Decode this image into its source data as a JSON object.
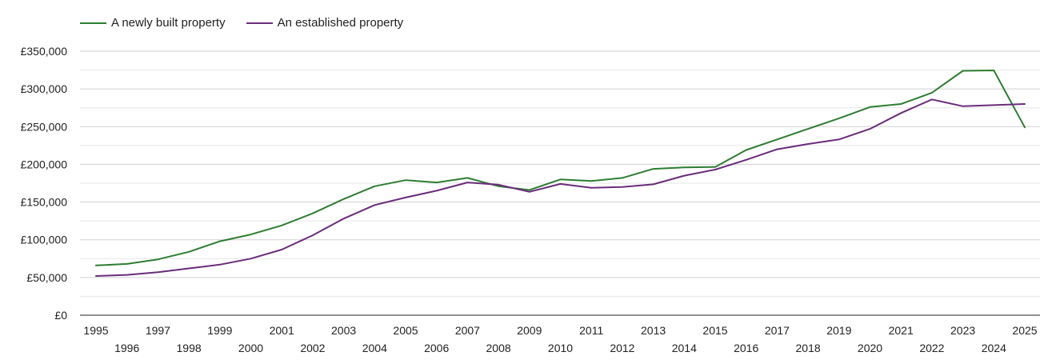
{
  "chart_data": {
    "type": "line",
    "title": "",
    "xlabel": "",
    "ylabel": "",
    "ylim": [
      0,
      350000
    ],
    "yticks": [
      0,
      50000,
      100000,
      150000,
      200000,
      250000,
      300000,
      350000
    ],
    "ytick_labels": [
      "£0",
      "£50,000",
      "£100,000",
      "£150,000",
      "£200,000",
      "£250,000",
      "£300,000",
      "£350,000"
    ],
    "x": [
      1995,
      1996,
      1997,
      1998,
      1999,
      2000,
      2001,
      2002,
      2003,
      2004,
      2005,
      2006,
      2007,
      2008,
      2009,
      2010,
      2011,
      2012,
      2013,
      2014,
      2015,
      2016,
      2017,
      2018,
      2019,
      2020,
      2021,
      2022,
      2023,
      2024,
      2025
    ],
    "xtick_labels": [
      "1995",
      "1996",
      "1997",
      "1998",
      "1999",
      "2000",
      "2001",
      "2002",
      "2003",
      "2004",
      "2005",
      "2006",
      "2007",
      "2008",
      "2009",
      "2010",
      "2011",
      "2012",
      "2013",
      "2014",
      "2015",
      "2016",
      "2017",
      "2018",
      "2019",
      "2020",
      "2021",
      "2022",
      "2023",
      "2024",
      "2025"
    ],
    "legend_position": "top-left",
    "series": [
      {
        "name": "A newly built property",
        "color": "#2e7d32",
        "values": [
          66000,
          68000,
          74000,
          84000,
          98000,
          107000,
          119000,
          135000,
          154000,
          171000,
          179000,
          176000,
          182000,
          171000,
          166000,
          180000,
          178000,
          182000,
          194000,
          196000,
          196500,
          219000,
          233000,
          247000,
          261000,
          276000,
          280000,
          295000,
          324000,
          324500,
          249000
        ]
      },
      {
        "name": "An established property",
        "color": "#6a2c7a",
        "values": [
          52000,
          53500,
          57000,
          62000,
          67000,
          75000,
          87000,
          106000,
          128000,
          146000,
          156000,
          165000,
          176000,
          173000,
          163500,
          174000,
          169000,
          170000,
          173500,
          185000,
          193000,
          206000,
          220000,
          227000,
          233000,
          247000,
          268000,
          286000,
          277000,
          278500,
          280000
        ]
      }
    ]
  }
}
